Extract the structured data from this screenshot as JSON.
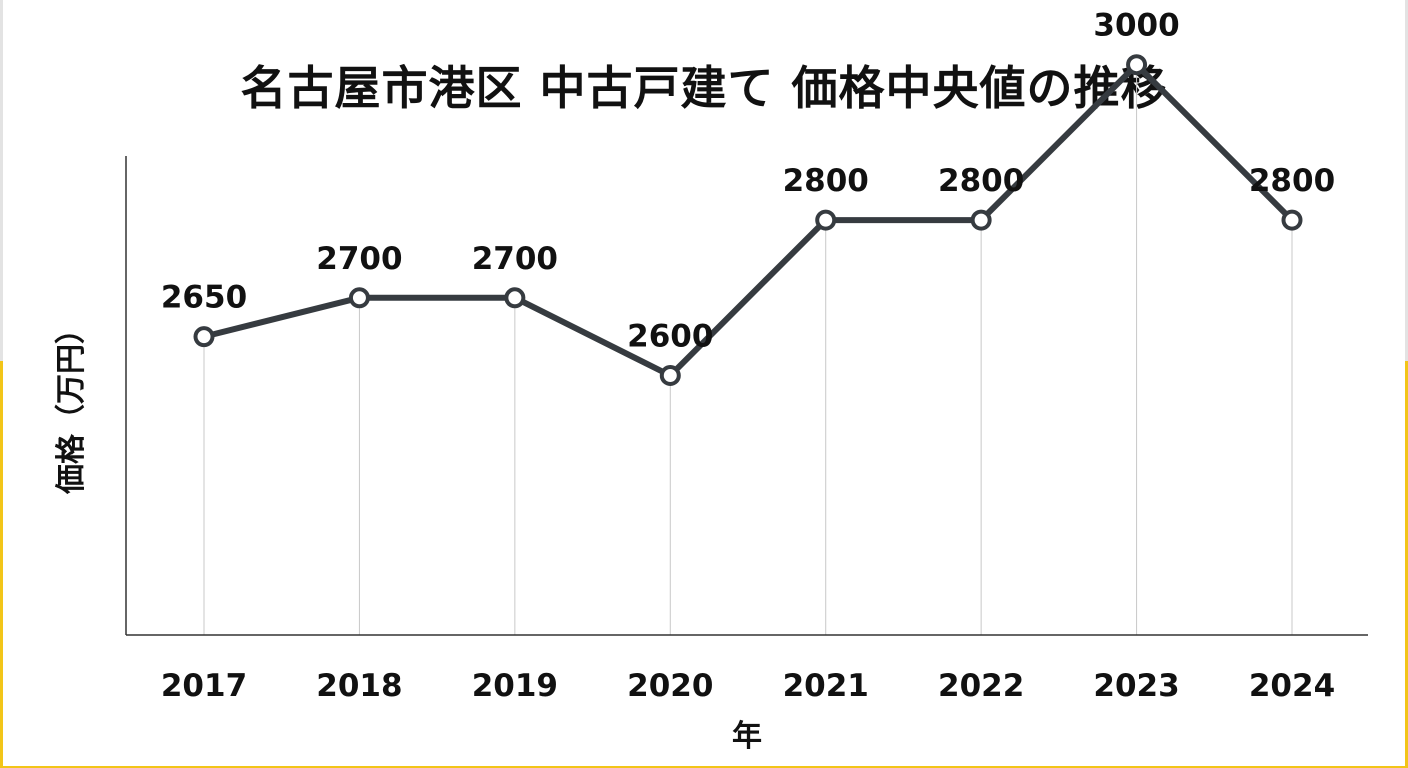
{
  "chart_data": {
    "type": "line",
    "title": "名古屋市港区 中古戸建て 価格中央値の推移",
    "xlabel": "年",
    "ylabel": "価格（万円）",
    "categories": [
      "2017",
      "2018",
      "2019",
      "2020",
      "2021",
      "2022",
      "2023",
      "2024"
    ],
    "values": [
      2650,
      2700,
      2700,
      2600,
      2800,
      2800,
      3000,
      2800
    ],
    "data_labels": [
      "2650",
      "2700",
      "2700",
      "2600",
      "2800",
      "2800",
      "3000",
      "2800"
    ],
    "y_axis_ticks_shown": false,
    "grid": "vertical",
    "legend": "none",
    "line_color": "#363b40"
  }
}
